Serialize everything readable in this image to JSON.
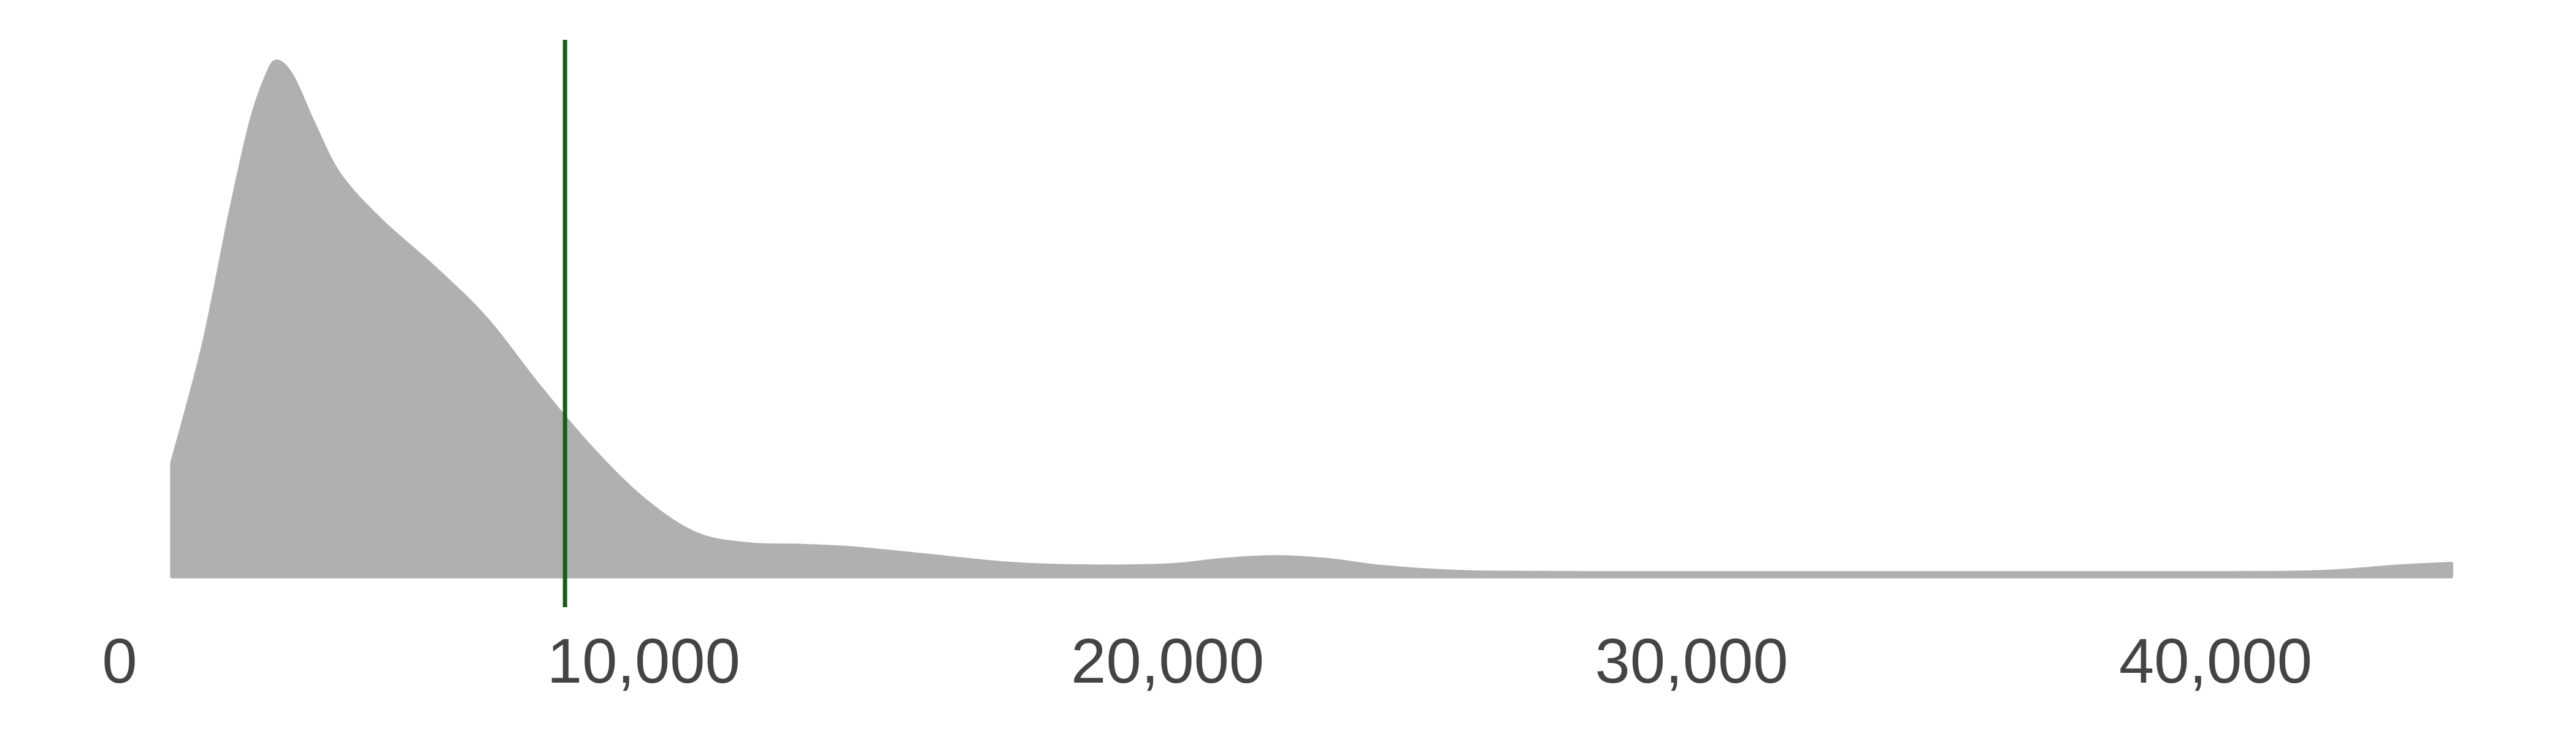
{
  "chart_data": {
    "type": "area",
    "title": "",
    "xlabel": "",
    "ylabel": "",
    "xlim": [
      0,
      46000
    ],
    "ylim": [
      0,
      1
    ],
    "grid": false,
    "legend": "none",
    "x_ticks": [
      0,
      10000,
      20000,
      30000,
      40000
    ],
    "x_tick_labels": [
      "0",
      "10,000",
      "20,000",
      "30,000",
      "40,000"
    ],
    "series": [
      {
        "fill_color": "#b0b0b0",
        "points": [
          {
            "x": 1000,
            "y": 0.22
          },
          {
            "x": 1600,
            "y": 0.45
          },
          {
            "x": 2100,
            "y": 0.7
          },
          {
            "x": 2500,
            "y": 0.88
          },
          {
            "x": 2800,
            "y": 0.97
          },
          {
            "x": 3000,
            "y": 1.0
          },
          {
            "x": 3300,
            "y": 0.97
          },
          {
            "x": 3700,
            "y": 0.88
          },
          {
            "x": 4200,
            "y": 0.78
          },
          {
            "x": 5000,
            "y": 0.69
          },
          {
            "x": 6000,
            "y": 0.6
          },
          {
            "x": 7000,
            "y": 0.5
          },
          {
            "x": 8000,
            "y": 0.37
          },
          {
            "x": 9000,
            "y": 0.25
          },
          {
            "x": 10000,
            "y": 0.15
          },
          {
            "x": 11000,
            "y": 0.083
          },
          {
            "x": 12000,
            "y": 0.063
          },
          {
            "x": 13000,
            "y": 0.06
          },
          {
            "x": 14000,
            "y": 0.055
          },
          {
            "x": 15500,
            "y": 0.04
          },
          {
            "x": 17000,
            "y": 0.025
          },
          {
            "x": 18500,
            "y": 0.02
          },
          {
            "x": 20000,
            "y": 0.022
          },
          {
            "x": 21000,
            "y": 0.032
          },
          {
            "x": 22000,
            "y": 0.038
          },
          {
            "x": 23000,
            "y": 0.033
          },
          {
            "x": 24000,
            "y": 0.02
          },
          {
            "x": 25000,
            "y": 0.012
          },
          {
            "x": 26000,
            "y": 0.008
          },
          {
            "x": 28000,
            "y": 0.007
          },
          {
            "x": 32000,
            "y": 0.007
          },
          {
            "x": 36000,
            "y": 0.007
          },
          {
            "x": 40000,
            "y": 0.007
          },
          {
            "x": 42000,
            "y": 0.009
          },
          {
            "x": 43500,
            "y": 0.02
          },
          {
            "x": 44500,
            "y": 0.025
          }
        ]
      }
    ],
    "reference_lines": [
      {
        "orientation": "vertical",
        "x": 8500,
        "color": "#1a5c1a"
      }
    ]
  }
}
